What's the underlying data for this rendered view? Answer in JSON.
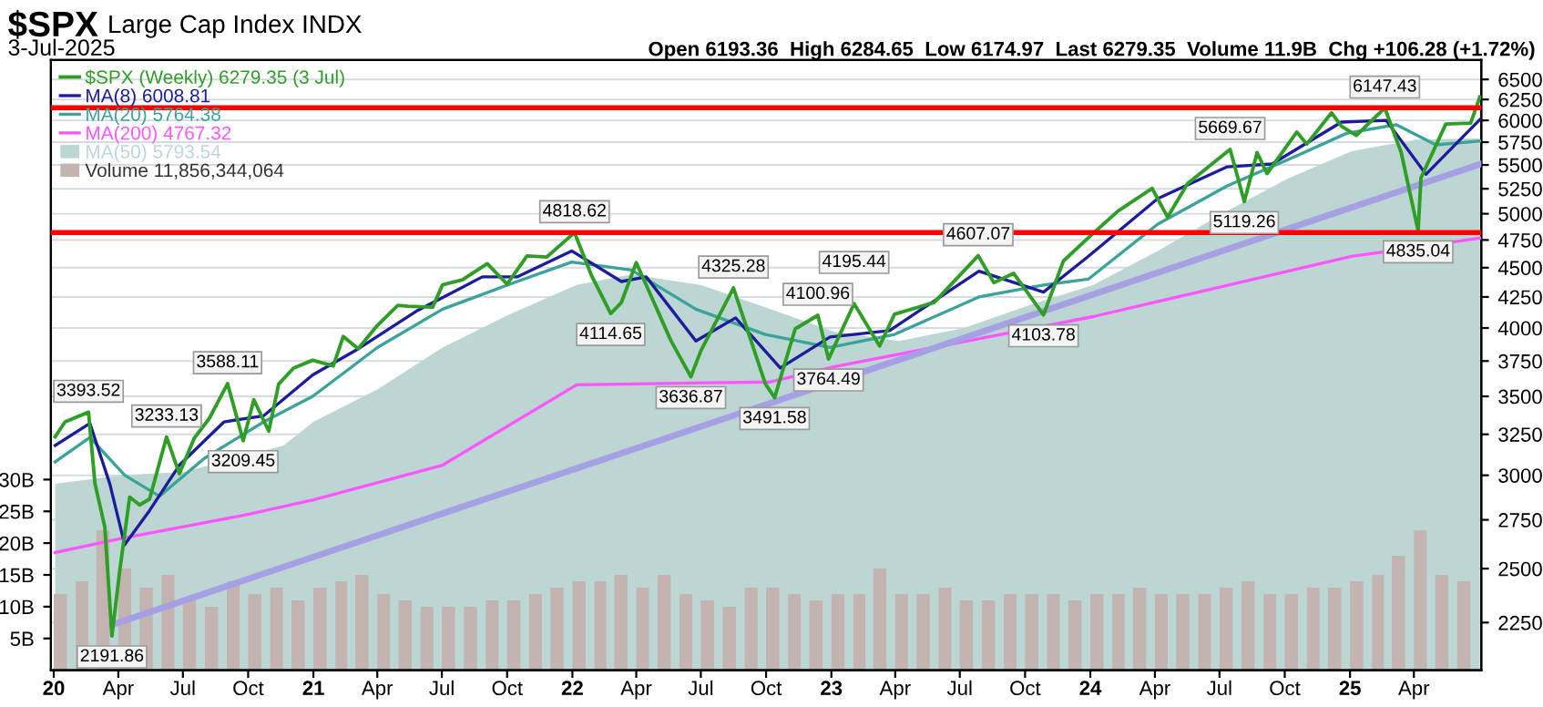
{
  "chart_data": {
    "type": "line",
    "title": "$SPX",
    "subtitle": "Large Cap Index INDX",
    "annotations": [
      "3-Jul-2025",
      "Open 6193.36  High 6284.65  Low 6174.97  Last 6279.35  Volume 11.9B  Chg +106.28 (+1.72%)",
      {
        "text": "3393.52",
        "x": "2020-02-19",
        "y": 3393.52
      },
      {
        "text": "2191.86",
        "x": "2020-03-23",
        "y": 2191.86
      },
      {
        "text": "3233.13",
        "x": "2020-06-08",
        "y": 3233.13
      },
      {
        "text": "3588.11",
        "x": "2020-09-02",
        "y": 3588.11
      },
      {
        "text": "3209.45",
        "x": "2020-09-24",
        "y": 3209.45
      },
      {
        "text": "4818.62",
        "x": "2022-01-04",
        "y": 4818.62
      },
      {
        "text": "4114.65",
        "x": "2022-02-24",
        "y": 4114.65
      },
      {
        "text": "3636.87",
        "x": "2022-06-17",
        "y": 3636.87
      },
      {
        "text": "4325.28",
        "x": "2022-08-16",
        "y": 4325.28
      },
      {
        "text": "3491.58",
        "x": "2022-10-13",
        "y": 3491.58
      },
      {
        "text": "4100.96",
        "x": "2022-12-13",
        "y": 4100.96
      },
      {
        "text": "3764.49",
        "x": "2022-12-28",
        "y": 3764.49
      },
      {
        "text": "4195.44",
        "x": "2023-02-02",
        "y": 4195.44
      },
      {
        "text": "4607.07",
        "x": "2023-07-27",
        "y": 4607.07
      },
      {
        "text": "4103.78",
        "x": "2023-10-27",
        "y": 4103.78
      },
      {
        "text": "5669.67",
        "x": "2024-07-16",
        "y": 5669.67
      },
      {
        "text": "5119.26",
        "x": "2024-08-05",
        "y": 5119.26
      },
      {
        "text": "6147.43",
        "x": "2025-02-19",
        "y": 6147.43
      },
      {
        "text": "4835.04",
        "x": "2025-04-07",
        "y": 4835.04
      }
    ],
    "log": "y",
    "grid": true,
    "legend": "top left",
    "xlim": [
      "2019-12-28",
      "2025-07-05"
    ],
    "xticks": [
      {
        "value": "2020-01-01",
        "label": "20"
      },
      {
        "value": "2020-04-01",
        "label": "Apr"
      },
      {
        "value": "2020-07-01",
        "label": "Jul"
      },
      {
        "value": "2020-10-01",
        "label": "Oct"
      },
      {
        "value": "2021-01-01",
        "label": "21"
      },
      {
        "value": "2021-04-01",
        "label": "Apr"
      },
      {
        "value": "2021-07-01",
        "label": "Jul"
      },
      {
        "value": "2021-10-01",
        "label": "Oct"
      },
      {
        "value": "2022-01-01",
        "label": "22"
      },
      {
        "value": "2022-04-01",
        "label": "Apr"
      },
      {
        "value": "2022-07-01",
        "label": "Jul"
      },
      {
        "value": "2022-10-01",
        "label": "Oct"
      },
      {
        "value": "2023-01-01",
        "label": "23"
      },
      {
        "value": "2023-04-01",
        "label": "Apr"
      },
      {
        "value": "2023-07-01",
        "label": "Jul"
      },
      {
        "value": "2023-10-01",
        "label": "Oct"
      },
      {
        "value": "2024-01-01",
        "label": "24"
      },
      {
        "value": "2024-04-01",
        "label": "Apr"
      },
      {
        "value": "2024-07-01",
        "label": "Jul"
      },
      {
        "value": "2024-10-01",
        "label": "Oct"
      },
      {
        "value": "2025-01-01",
        "label": "25"
      },
      {
        "value": "2025-04-01",
        "label": "Apr"
      }
    ],
    "ylim": [
      2050,
      6750
    ],
    "yticks": [
      2250,
      2500,
      2750,
      3000,
      3250,
      3500,
      3750,
      4000,
      4250,
      4500,
      4750,
      5000,
      5250,
      5500,
      5750,
      6000,
      6250,
      6500
    ],
    "y2lim": [
      0,
      96
    ],
    "y2ticks": [
      {
        "value": 5,
        "label": "5B"
      },
      {
        "value": 10,
        "label": "10B"
      },
      {
        "value": 15,
        "label": "15B"
      },
      {
        "value": 20,
        "label": "20B"
      },
      {
        "value": 25,
        "label": "25B"
      },
      {
        "value": 30,
        "label": "30B"
      }
    ],
    "ref_lines": [
      {
        "axis": "y",
        "value": 6150,
        "color": "#ff0000"
      },
      {
        "axis": "y",
        "value": 4820,
        "color": "#ff0000"
      }
    ],
    "series": [
      {
        "name": "Volume 11,856,344,064",
        "type": "bar",
        "axis": "y2",
        "color": "#c3b3b1",
        "x": [
          "2020-01",
          "2020-02",
          "2020-03",
          "2020-04",
          "2020-05",
          "2020-06",
          "2020-07",
          "2020-08",
          "2020-09",
          "2020-10",
          "2020-11",
          "2020-12",
          "2021-01",
          "2021-02",
          "2021-03",
          "2021-04",
          "2021-05",
          "2021-06",
          "2021-07",
          "2021-08",
          "2021-09",
          "2021-10",
          "2021-11",
          "2021-12",
          "2022-01",
          "2022-02",
          "2022-03",
          "2022-04",
          "2022-05",
          "2022-06",
          "2022-07",
          "2022-08",
          "2022-09",
          "2022-10",
          "2022-11",
          "2022-12",
          "2023-01",
          "2023-02",
          "2023-03",
          "2023-04",
          "2023-05",
          "2023-06",
          "2023-07",
          "2023-08",
          "2023-09",
          "2023-10",
          "2023-11",
          "2023-12",
          "2024-01",
          "2024-02",
          "2024-03",
          "2024-04",
          "2024-05",
          "2024-06",
          "2024-07",
          "2024-08",
          "2024-09",
          "2024-10",
          "2024-11",
          "2024-12",
          "2025-01",
          "2025-02",
          "2025-03",
          "2025-04",
          "2025-05",
          "2025-06"
        ],
        "values": [
          12,
          14,
          22,
          16,
          13,
          15,
          11,
          10,
          14,
          12,
          13,
          11,
          13,
          14,
          15,
          12,
          11,
          10,
          10,
          10,
          11,
          11,
          12,
          13,
          14,
          14,
          15,
          13,
          15,
          12,
          11,
          10,
          13,
          13,
          12,
          11,
          12,
          12,
          16,
          12,
          12,
          13,
          11,
          11,
          12,
          12,
          12,
          11,
          12,
          12,
          13,
          12,
          12,
          12,
          13,
          14,
          12,
          12,
          13,
          13,
          14,
          15,
          18,
          22,
          15,
          14
        ]
      },
      {
        "name": "MA(50) 5793.54",
        "type": "area",
        "color": "#bcd6d3",
        "x": [
          "2020-01-03",
          "2020-04-03",
          "2020-07-03",
          "2020-11-20",
          "2021-01-01",
          "2021-04-02",
          "2021-07-02",
          "2021-10-01",
          "2022-01-07",
          "2022-03-25",
          "2022-07-01",
          "2022-10-07",
          "2023-01-06",
          "2023-04-07",
          "2023-07-07",
          "2023-10-06",
          "2024-01-05",
          "2024-04-05",
          "2024-07-05",
          "2024-10-04",
          "2025-01-03",
          "2025-04-04",
          "2025-07-03"
        ],
        "values": [
          2950,
          3000,
          3020,
          3180,
          3330,
          3550,
          3850,
          4100,
          4350,
          4440,
          4350,
          4150,
          3970,
          3900,
          4000,
          4180,
          4350,
          4650,
          5000,
          5350,
          5650,
          5780,
          5794
        ]
      },
      {
        "name": "MA(200) 4767.32",
        "color": "#ff55ff",
        "x": [
          "2020-01-03",
          "2020-04-03",
          "2020-10-02",
          "2021-01-01",
          "2021-07-02",
          "2022-01-07",
          "2022-10-07",
          "2023-01-06",
          "2024-01-05",
          "2025-01-03",
          "2025-07-03"
        ],
        "values": [
          2580,
          2650,
          2780,
          2860,
          3060,
          3580,
          3600,
          3710,
          4090,
          4600,
          4767
        ]
      },
      {
        "color": "#a79fe3",
        "x": [
          "2020-03-23",
          "2025-07-04"
        ],
        "values": [
          2240,
          5510
        ]
      },
      {
        "name": "MA(20) 5764.38",
        "color": "#3aa39a",
        "x": [
          "2020-01-03",
          "2020-02-21",
          "2020-04-10",
          "2020-05-29",
          "2020-07-31",
          "2020-10-23",
          "2020-12-31",
          "2021-04-01",
          "2021-07-02",
          "2021-10-15",
          "2021-12-31",
          "2022-03-25",
          "2022-06-24",
          "2022-09-30",
          "2022-12-30",
          "2023-03-31",
          "2023-07-28",
          "2023-10-27",
          "2023-12-29",
          "2024-04-05",
          "2024-07-12",
          "2024-10-18",
          "2024-12-27",
          "2025-03-07",
          "2025-05-02",
          "2025-07-03"
        ],
        "values": [
          3080,
          3230,
          3000,
          2880,
          3100,
          3330,
          3500,
          3850,
          4150,
          4380,
          4550,
          4480,
          4150,
          3950,
          3850,
          3950,
          4250,
          4350,
          4400,
          4900,
          5280,
          5600,
          5850,
          5950,
          5720,
          5764
        ]
      },
      {
        "name": "MA(8) 6008.81",
        "color": "#1c1c9c",
        "x": [
          "2020-01-03",
          "2020-02-21",
          "2020-03-20",
          "2020-04-10",
          "2020-05-15",
          "2020-06-26",
          "2020-08-28",
          "2020-10-23",
          "2020-12-31",
          "2021-03-05",
          "2021-05-28",
          "2021-08-27",
          "2021-10-15",
          "2021-12-31",
          "2022-03-11",
          "2022-04-15",
          "2022-06-24",
          "2022-08-19",
          "2022-10-21",
          "2022-12-30",
          "2023-03-24",
          "2023-07-28",
          "2023-10-27",
          "2023-12-29",
          "2024-04-05",
          "2024-07-12",
          "2024-09-13",
          "2024-12-20",
          "2025-02-21",
          "2025-04-18",
          "2025-07-03"
        ],
        "values": [
          3180,
          3320,
          2950,
          2620,
          2800,
          3060,
          3330,
          3370,
          3650,
          3840,
          4140,
          4420,
          4420,
          4650,
          4380,
          4420,
          3900,
          4080,
          3700,
          3930,
          3980,
          4470,
          4290,
          4600,
          5150,
          5480,
          5510,
          5980,
          6000,
          5400,
          6009
        ]
      },
      {
        "name": "$SPX (Weekly) 6279.35 (3 Jul)",
        "color": "#2f9e26",
        "x": [
          "2020-01-03",
          "2020-01-17",
          "2020-02-19",
          "2020-02-28",
          "2020-03-13",
          "2020-03-23",
          "2020-04-03",
          "2020-04-17",
          "2020-05-01",
          "2020-05-15",
          "2020-06-08",
          "2020-06-26",
          "2020-07-17",
          "2020-08-07",
          "2020-09-02",
          "2020-09-24",
          "2020-10-09",
          "2020-10-30",
          "2020-11-13",
          "2020-12-04",
          "2020-12-31",
          "2021-01-29",
          "2021-02-12",
          "2021-03-05",
          "2021-04-01",
          "2021-04-30",
          "2021-05-14",
          "2021-06-18",
          "2021-07-02",
          "2021-07-30",
          "2021-09-03",
          "2021-10-01",
          "2021-10-29",
          "2021-11-26",
          "2022-01-04",
          "2022-01-28",
          "2022-02-24",
          "2022-03-11",
          "2022-04-01",
          "2022-05-20",
          "2022-06-17",
          "2022-07-01",
          "2022-08-16",
          "2022-09-30",
          "2022-10-13",
          "2022-11-11",
          "2022-12-13",
          "2022-12-28",
          "2023-02-02",
          "2023-03-10",
          "2023-03-31",
          "2023-05-26",
          "2023-07-27",
          "2023-08-18",
          "2023-09-15",
          "2023-10-27",
          "2023-11-24",
          "2023-12-29",
          "2024-02-09",
          "2024-03-28",
          "2024-04-19",
          "2024-05-17",
          "2024-07-16",
          "2024-08-05",
          "2024-08-23",
          "2024-09-06",
          "2024-10-18",
          "2024-11-01",
          "2024-12-06",
          "2024-12-20",
          "2025-01-10",
          "2025-02-19",
          "2025-03-14",
          "2025-04-07",
          "2025-04-11",
          "2025-05-16",
          "2025-06-20",
          "2025-07-03"
        ],
        "values": [
          3235,
          3330,
          3393.52,
          2954,
          2711,
          2191.86,
          2489,
          2875,
          2831,
          2864,
          3233.13,
          3009,
          3225,
          3351,
          3588.11,
          3209.45,
          3477,
          3270,
          3585,
          3699,
          3756,
          3714,
          3934,
          3842,
          4019,
          4181,
          4174,
          4166,
          4352,
          4395,
          4535,
          4357,
          4605,
          4595,
          4818.62,
          4431,
          4114.65,
          4204,
          4545,
          3901,
          3636.87,
          3825,
          4325.28,
          3586,
          3491.58,
          3993,
          4100.96,
          3764.49,
          4195.44,
          3862,
          4109,
          4205,
          4607.07,
          4370,
          4450,
          4103.78,
          4559,
          4770,
          5027,
          5254,
          4967,
          5303,
          5669.67,
          5119.26,
          5634,
          5408,
          5865,
          5729,
          6090,
          5931,
          5827,
          6147.43,
          5639,
          4835.04,
          5363,
          5958,
          5968,
          6279
        ]
      }
    ]
  }
}
